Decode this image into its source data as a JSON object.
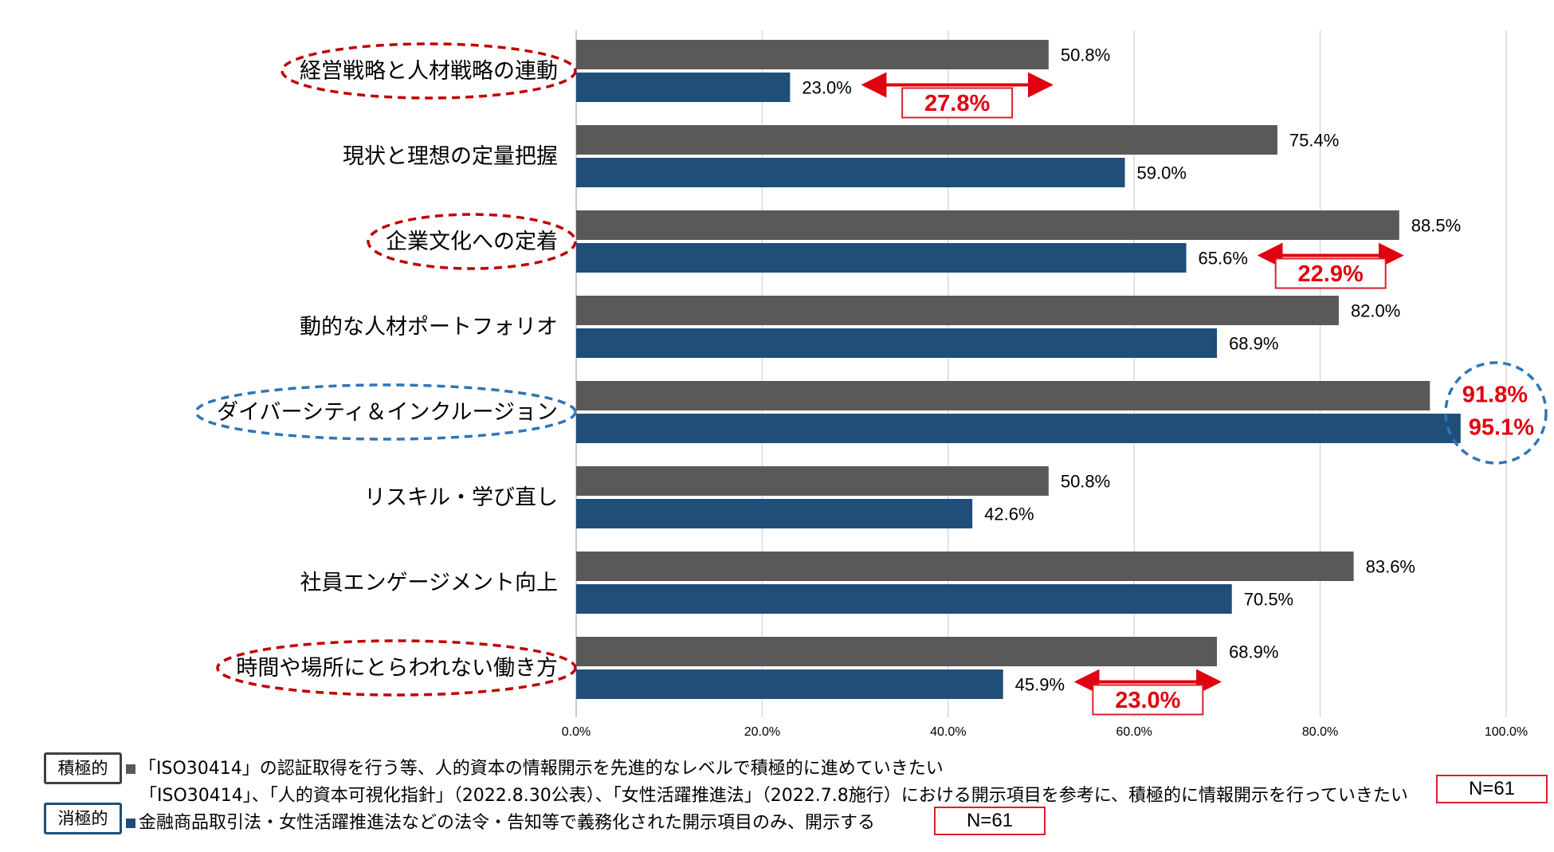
{
  "chart_data": {
    "type": "bar",
    "orientation": "horizontal",
    "categories": [
      "経営戦略と人材戦略の連動",
      "現状と理想の定量把握",
      "企業文化への定着",
      "動的な人材ポートフォリオ",
      "ダイバーシティ＆インクルージョン",
      "リスキル・学び直し",
      "社員エンゲージメント向上",
      "時間や場所にとらわれない働き方"
    ],
    "series": [
      {
        "name": "積極的",
        "color": "#595959",
        "values": [
          50.8,
          75.4,
          88.5,
          82.0,
          91.8,
          50.8,
          83.6,
          68.9
        ],
        "value_labels": [
          "50.8%",
          "75.4%",
          "88.5%",
          "82.0%",
          "91.8%",
          "50.8%",
          "83.6%",
          "68.9%"
        ]
      },
      {
        "name": "消極的",
        "color": "#1f4e79",
        "values": [
          23.0,
          59.0,
          65.6,
          68.9,
          95.1,
          42.6,
          70.5,
          45.9
        ],
        "value_labels": [
          "23.0%",
          "59.0%",
          "65.6%",
          "68.9%",
          "95.1%",
          "42.6%",
          "70.5%",
          "45.9%"
        ]
      }
    ],
    "xlim": [
      0,
      100
    ],
    "x_ticks": [
      0,
      20,
      40,
      60,
      80,
      100
    ],
    "x_tick_labels": [
      "0.0%",
      "20.0%",
      "40.0%",
      "60.0%",
      "80.0%",
      "100.0%"
    ],
    "grid": true,
    "annotations": [
      {
        "category": "経営戦略と人材戦略の連動",
        "label": "27.8%",
        "from": 23.0,
        "to": 50.8
      },
      {
        "category": "企業文化への定着",
        "label": "22.9%",
        "from": 65.6,
        "to": 88.5
      },
      {
        "category": "時間や場所にとらわれない働き方",
        "label": "23.0%",
        "from": 45.9,
        "to": 68.9
      }
    ],
    "highlighted_categories": [
      {
        "category": "経営戦略と人材戦略の連動",
        "color": "#c00000"
      },
      {
        "category": "企業文化への定着",
        "color": "#c00000"
      },
      {
        "category": "時間や場所にとらわれない働き方",
        "color": "#c00000"
      },
      {
        "category": "ダイバーシティ＆インクルージョン",
        "color": "#2e75b6"
      }
    ]
  },
  "legend": {
    "positive": {
      "badge": "積極的",
      "line1": "「ISO30414」の認証取得を行う等、人的資本の情報開示を先進的なレベルで積極的に進めていきたい",
      "line2": "「ISO30414」、「人的資本可視化指針」（2022.8.30公表）、「女性活躍推進法」（2022.7.8施行）における開示項目を参考に、積極的に情報開示を行っていきたい",
      "n": "N=61"
    },
    "negative": {
      "badge": "消極的",
      "line1": "金融商品取引法・女性活躍推進法などの法令・告知等で義務化された開示項目のみ、開示する",
      "n": "N=61"
    }
  }
}
